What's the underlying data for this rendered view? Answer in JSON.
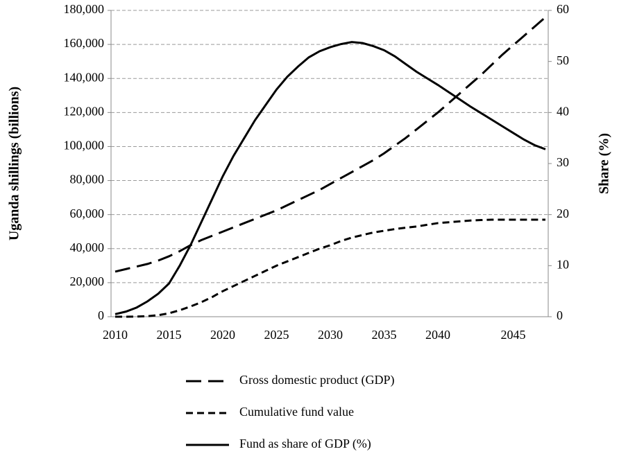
{
  "chart_data": {
    "type": "line",
    "ylabel": "Uganda shillings (billions)",
    "y2label": "Share (%)",
    "categories": [
      "2010",
      null,
      null,
      null,
      null,
      "2015",
      null,
      null,
      null,
      null,
      "2020",
      null,
      null,
      null,
      null,
      "2025",
      null,
      null,
      null,
      null,
      "2030",
      null,
      null,
      null,
      null,
      "2035",
      null,
      null,
      null,
      null,
      "2040",
      null,
      null,
      null,
      null,
      null,
      null,
      "2045",
      null,
      null,
      null
    ],
    "series": [
      {
        "name": "Gross domestic product (GDP)",
        "color": "#000000",
        "dash": "22,10",
        "values": [
          26500,
          28000,
          29500,
          31000,
          33000,
          35500,
          38500,
          42000,
          45000,
          47500,
          50000,
          52500,
          55000,
          57500,
          60000,
          62500,
          65500,
          68500,
          71500,
          74500,
          78000,
          81500,
          85000,
          88500,
          92000,
          96000,
          100500,
          105000,
          110000,
          115000,
          120000,
          125500,
          131000,
          136500,
          142000,
          148000,
          154000,
          159500,
          165000,
          170500,
          176000
        ]
      },
      {
        "name": "Cumulative fund value",
        "color": "#000000",
        "dash": "10,6",
        "values": [
          0,
          0,
          100,
          300,
          900,
          2000,
          3800,
          6000,
          8500,
          11500,
          15000,
          18000,
          21000,
          24000,
          27000,
          30000,
          32500,
          35000,
          37500,
          40000,
          42000,
          44500,
          46500,
          48000,
          49500,
          50500,
          51500,
          52300,
          53000,
          54000,
          55000,
          55500,
          56000,
          56500,
          56800,
          57000,
          57000,
          57000,
          57000,
          57000,
          57000
        ]
      },
      {
        "name": "Fund as share of GDP (%)",
        "color": "#000000",
        "dash": "none",
        "axis": "y2",
        "values": [
          0.5,
          1,
          1.8,
          3,
          4.5,
          6.5,
          10,
          14,
          18.5,
          23,
          27.5,
          31.5,
          35,
          38.5,
          41.5,
          44.5,
          47,
          49,
          50.8,
          52,
          52.8,
          53.4,
          53.8,
          53.6,
          53,
          52.2,
          51,
          49.5,
          48,
          46.7,
          45.4,
          44,
          42.6,
          41.2,
          39.9,
          38.6,
          37.3,
          36,
          34.7,
          33.6,
          32.8
        ]
      }
    ],
    "ylim": [
      0,
      180000
    ],
    "yticks": [
      0,
      {
        "value": 20000,
        "label": "20,000"
      },
      {
        "value": 40000,
        "label": "40,000"
      },
      {
        "value": 60000,
        "label": "60,000"
      },
      {
        "value": 80000,
        "label": "80,000"
      },
      {
        "value": 100000,
        "label": "100,000"
      },
      {
        "value": 120000,
        "label": "120,000"
      },
      {
        "value": 140000,
        "label": "140,000"
      },
      {
        "value": 160000,
        "label": "160,000"
      },
      {
        "value": 180000,
        "label": "180,000"
      }
    ],
    "y2lim": [
      0,
      60
    ],
    "y2ticks": [
      0,
      10,
      20,
      30,
      40,
      50,
      60
    ],
    "grid": true,
    "legend": "bottom"
  }
}
